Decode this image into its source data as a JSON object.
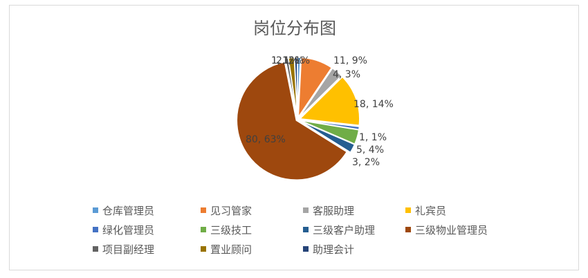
{
  "chart_data": {
    "type": "pie",
    "title": "岗位分布图",
    "legend_position": "bottom",
    "slices": [
      {
        "name": "仓库管理员",
        "value": 1,
        "percent": 1,
        "color": "#5B9BD5"
      },
      {
        "name": "见习管家",
        "value": 11,
        "percent": 9,
        "color": "#ED7D31"
      },
      {
        "name": "客服助理",
        "value": 4,
        "percent": 3,
        "color": "#A5A5A5"
      },
      {
        "name": "礼宾员",
        "value": 18,
        "percent": 14,
        "color": "#FFC000"
      },
      {
        "name": "绿化管理员",
        "value": 1,
        "percent": 1,
        "color": "#4472C4"
      },
      {
        "name": "三级技工",
        "value": 5,
        "percent": 4,
        "color": "#70AD47"
      },
      {
        "name": "三级客户助理",
        "value": 3,
        "percent": 2,
        "color": "#255E91"
      },
      {
        "name": "三级物业管理员",
        "value": 80,
        "percent": 63,
        "color": "#9E480E"
      },
      {
        "name": "项目副经理",
        "value": 1,
        "percent": 1,
        "color": "#636363"
      },
      {
        "name": "置业顾问",
        "value": 2,
        "percent": 2,
        "color": "#997300"
      },
      {
        "name": "助理会计",
        "value": 1,
        "percent": 1,
        "color": "#264478"
      }
    ],
    "data_labels": [
      "1, 1%",
      "11, 9%",
      "4, 3%",
      "18, 14%",
      "1, 1%",
      "5, 4%",
      "3, 2%",
      "80, 63%",
      "1, 1%",
      "2, 2%",
      "1, 1%"
    ]
  }
}
